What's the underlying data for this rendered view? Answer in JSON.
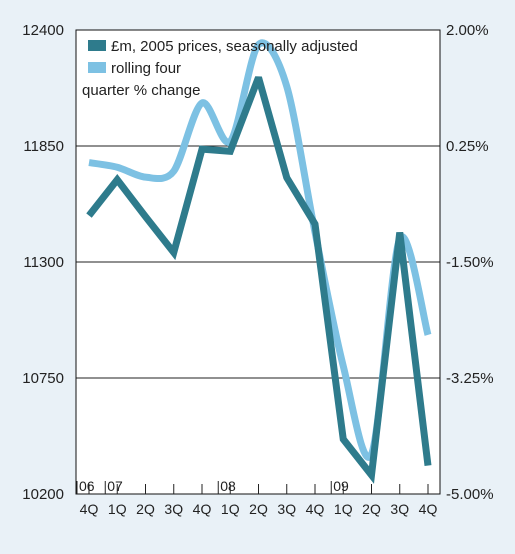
{
  "chart_data": {
    "type": "line",
    "categories": [
      "4Q",
      "1Q",
      "2Q",
      "3Q",
      "4Q",
      "1Q",
      "2Q",
      "3Q",
      "4Q",
      "1Q",
      "2Q",
      "3Q",
      "4Q"
    ],
    "year_markers": [
      {
        "label": "06",
        "index": 0
      },
      {
        "label": "07",
        "index": 1
      },
      {
        "label": "08",
        "index": 5
      },
      {
        "label": "09",
        "index": 9
      }
    ],
    "y_left": {
      "ticks": [
        "12400",
        "11850",
        "11300",
        "10750",
        "10200"
      ],
      "ylim": [
        10200,
        12400
      ]
    },
    "y_right": {
      "ticks": [
        "2.00%",
        "0.25%",
        "-1.50%",
        "-3.25%",
        "-5.00%"
      ],
      "ylim": [
        -5.0,
        2.0
      ]
    },
    "grid": "horizontal",
    "legend_position": "top-left",
    "series": [
      {
        "name": "£m, 2005 prices, seasonally adjusted",
        "axis": "left",
        "color": "#2e7b8c",
        "values": [
          11520,
          11690,
          11515,
          11345,
          11835,
          11825,
          12175,
          11700,
          11480,
          10460,
          10290,
          11440,
          10335
        ],
        "interpolation": "linear"
      },
      {
        "name": "rolling four quarter % change",
        "name_lines": [
          "rolling four",
          "quarter % change"
        ],
        "axis": "right",
        "color": "#7dc1e3",
        "values": [
          0.0,
          -0.07,
          -0.22,
          -0.13,
          0.9,
          0.32,
          1.78,
          1.15,
          -1.05,
          -3.07,
          -4.4,
          -1.15,
          -2.6
        ],
        "interpolation": "smooth"
      }
    ]
  }
}
